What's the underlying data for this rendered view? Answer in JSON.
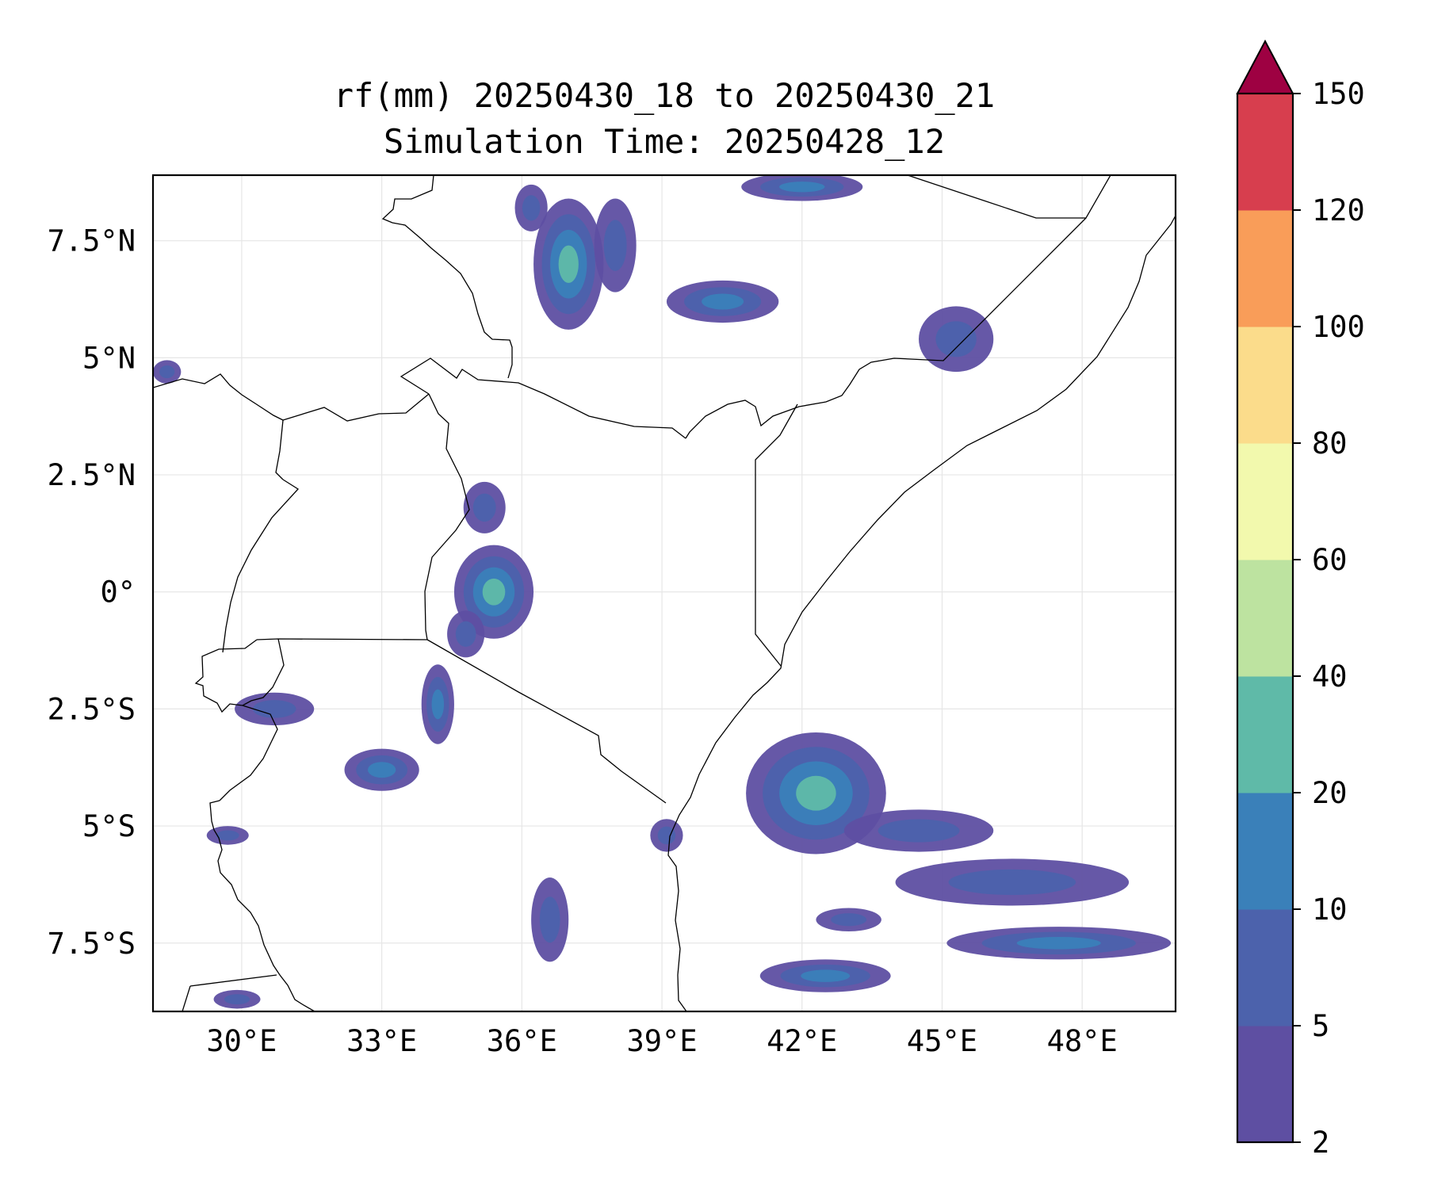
{
  "title": {
    "line1": "rf(mm) 20250430_18 to 20250430_21",
    "line2": "Simulation Time: 20250428_12"
  },
  "map": {
    "extent": {
      "lon": [
        28.1,
        50
      ],
      "lat": [
        -8.96,
        8.9
      ]
    },
    "x_ticks": [
      {
        "lon": 30,
        "label": "30°E"
      },
      {
        "lon": 33,
        "label": "33°E"
      },
      {
        "lon": 36,
        "label": "36°E"
      },
      {
        "lon": 39,
        "label": "39°E"
      },
      {
        "lon": 42,
        "label": "42°E"
      },
      {
        "lon": 45,
        "label": "45°E"
      },
      {
        "lon": 48,
        "label": "48°E"
      }
    ],
    "y_ticks": [
      {
        "lat": 7.5,
        "label": "7.5°N"
      },
      {
        "lat": 5,
        "label": "5°N"
      },
      {
        "lat": 2.5,
        "label": "2.5°N"
      },
      {
        "lat": 0,
        "label": "0°"
      },
      {
        "lat": -2.5,
        "label": "2.5°S"
      },
      {
        "lat": -5,
        "label": "5°S"
      },
      {
        "lat": -7.5,
        "label": "7.5°S"
      }
    ],
    "grid": true
  },
  "colorbar": {
    "levels": [
      2,
      5,
      10,
      20,
      40,
      60,
      80,
      100,
      120,
      150
    ],
    "colors": [
      "#5e4fa2",
      "#4c62ac",
      "#3a80b9",
      "#5fbaa8",
      "#bde3a0",
      "#f2f9ad",
      "#fbdc8b",
      "#f99d59",
      "#d73e4e"
    ],
    "extend_color": "#9e0142",
    "extend": "max"
  },
  "rainfall_cells": [
    {
      "lon": 37.0,
      "lat": 7.0,
      "rx": 0.75,
      "ry": 1.4,
      "level": 3
    },
    {
      "lon": 36.2,
      "lat": 8.2,
      "rx": 0.35,
      "ry": 0.5,
      "level": 1
    },
    {
      "lon": 38.0,
      "lat": 7.4,
      "rx": 0.45,
      "ry": 1.0,
      "level": 1
    },
    {
      "lon": 40.3,
      "lat": 6.2,
      "rx": 1.2,
      "ry": 0.45,
      "level": 2
    },
    {
      "lon": 42.0,
      "lat": 8.65,
      "rx": 1.3,
      "ry": 0.3,
      "level": 2
    },
    {
      "lon": 45.3,
      "lat": 5.4,
      "rx": 0.8,
      "ry": 0.7,
      "level": 1
    },
    {
      "lon": 35.4,
      "lat": 0.0,
      "rx": 0.85,
      "ry": 1.0,
      "level": 3
    },
    {
      "lon": 35.2,
      "lat": 1.8,
      "rx": 0.45,
      "ry": 0.55,
      "level": 1
    },
    {
      "lon": 34.8,
      "lat": -0.9,
      "rx": 0.4,
      "ry": 0.5,
      "level": 1
    },
    {
      "lon": 34.2,
      "lat": -2.4,
      "rx": 0.35,
      "ry": 0.85,
      "level": 2
    },
    {
      "lon": 33.0,
      "lat": -3.8,
      "rx": 0.8,
      "ry": 0.45,
      "level": 2
    },
    {
      "lon": 30.7,
      "lat": -2.5,
      "rx": 0.85,
      "ry": 0.35,
      "level": 1
    },
    {
      "lon": 29.7,
      "lat": -5.2,
      "rx": 0.45,
      "ry": 0.2,
      "level": 1
    },
    {
      "lon": 42.3,
      "lat": -4.3,
      "rx": 1.5,
      "ry": 1.3,
      "level": 3
    },
    {
      "lon": 44.5,
      "lat": -5.1,
      "rx": 1.6,
      "ry": 0.45,
      "level": 1
    },
    {
      "lon": 46.5,
      "lat": -6.2,
      "rx": 2.5,
      "ry": 0.5,
      "level": 1
    },
    {
      "lon": 47.5,
      "lat": -7.5,
      "rx": 2.4,
      "ry": 0.35,
      "level": 2
    },
    {
      "lon": 42.5,
      "lat": -8.2,
      "rx": 1.4,
      "ry": 0.35,
      "level": 2
    },
    {
      "lon": 43.0,
      "lat": -7.0,
      "rx": 0.7,
      "ry": 0.25,
      "level": 1
    },
    {
      "lon": 29.9,
      "lat": -8.7,
      "rx": 0.5,
      "ry": 0.2,
      "level": 1
    },
    {
      "lon": 36.6,
      "lat": -7.0,
      "rx": 0.4,
      "ry": 0.9,
      "level": 1
    },
    {
      "lon": 39.1,
      "lat": -5.2,
      "rx": 0.35,
      "ry": 0.35,
      "level": 1
    },
    {
      "lon": 28.4,
      "lat": 4.7,
      "rx": 0.3,
      "ry": 0.25,
      "level": 1
    }
  ]
}
